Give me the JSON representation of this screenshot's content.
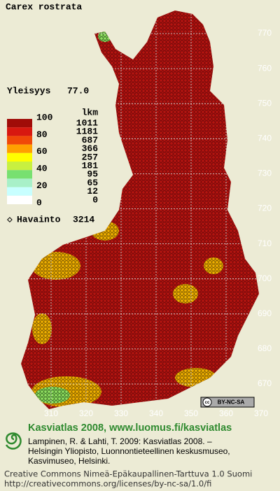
{
  "title": "Carex rostrata",
  "frequency": {
    "label": "Yleisyys",
    "value": "77.0"
  },
  "legend": {
    "count_header": "lkm",
    "scale_labels": [
      "100",
      "80",
      "60",
      "40",
      "20",
      "0"
    ],
    "bins": [
      {
        "color": "#a00c08",
        "count": "1011"
      },
      {
        "color": "#d81810",
        "count": "1181"
      },
      {
        "color": "#f04808",
        "count": "687"
      },
      {
        "color": "#ffa000",
        "count": "366"
      },
      {
        "color": "#ffff00",
        "count": "257"
      },
      {
        "color": "#c8f040",
        "count": "181"
      },
      {
        "color": "#78e070",
        "count": "95"
      },
      {
        "color": "#a8f0c8",
        "count": "65"
      },
      {
        "color": "#c8ffff",
        "count": "12"
      },
      {
        "color": "#ffffff",
        "count": "0"
      }
    ]
  },
  "observations": {
    "label": "Havainto",
    "value": "3214"
  },
  "map": {
    "northing_labels": [
      "770",
      "760",
      "750",
      "740",
      "730",
      "720",
      "710",
      "700",
      "690",
      "680",
      "670"
    ],
    "easting_labels": [
      "310",
      "320",
      "330",
      "340",
      "350",
      "360",
      "370"
    ]
  },
  "license_badge": "BY-NC-SA",
  "footer": {
    "heading": "Kasviatlas 2008, www.luomus.fi/kasviatlas",
    "citation": [
      "Lampinen, R. & Lahti, T. 2009: Kasviatlas 2008. –",
      "Helsingin Yliopisto, Luonnontieteellinen keskusmuseo,",
      "Kasvimuseo, Helsinki."
    ],
    "license": [
      "Creative Commons Nimeä-Epäkaupallinen-Tarttuva 1.0 Suomi",
      "http://creativecommons.org/licenses/by-nc-sa/1.0/fi"
    ]
  }
}
